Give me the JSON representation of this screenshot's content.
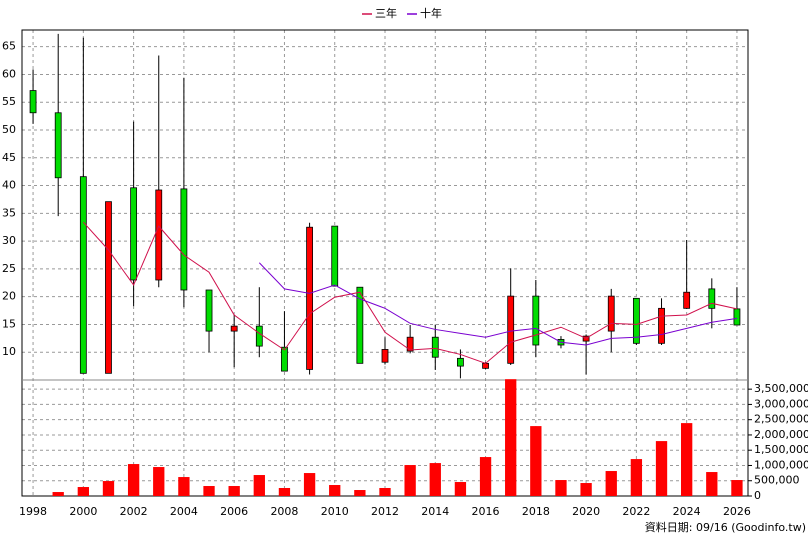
{
  "chart_data": {
    "type": "candlestick",
    "x": [
      1998,
      1999,
      2000,
      2001,
      2002,
      2003,
      2004,
      2005,
      2006,
      2007,
      2008,
      2009,
      2010,
      2011,
      2012,
      2013,
      2014,
      2015,
      2016,
      2017,
      2018,
      2019,
      2020,
      2021,
      2022,
      2023,
      2024,
      2025,
      2026
    ],
    "open": [
      57.1,
      53.1,
      41.6,
      6.2,
      39.6,
      23.0,
      39.4,
      21.2,
      13.8,
      14.7,
      10.9,
      6.9,
      32.7,
      21.7,
      8.2,
      10.2,
      12.7,
      8.9,
      7.1,
      8.0,
      20.1,
      12.3,
      12.0,
      13.8,
      19.7,
      11.6,
      17.9,
      21.4,
      17.8
    ],
    "high": [
      60.9,
      67.3,
      66.6,
      37.1,
      51.5,
      63.4,
      59.4,
      21.2,
      16.7,
      21.7,
      17.4,
      33.3,
      32.7,
      21.7,
      12.7,
      14.9,
      14.9,
      10.5,
      8.2,
      25.1,
      23.0,
      12.9,
      13.2,
      21.4,
      19.7,
      19.7,
      30.2,
      23.3,
      21.7
    ],
    "low": [
      51.1,
      34.5,
      6.2,
      6.2,
      18.3,
      21.7,
      18.1,
      10.0,
      7.3,
      9.1,
      6.6,
      6.0,
      21.9,
      8.0,
      7.8,
      9.8,
      6.8,
      5.3,
      6.9,
      7.7,
      9.1,
      10.7,
      6.0,
      10.0,
      11.3,
      11.3,
      17.8,
      14.3,
      14.9
    ],
    "close": [
      53.1,
      41.4,
      6.2,
      37.1,
      23.0,
      39.2,
      21.2,
      13.8,
      14.7,
      11.1,
      6.6,
      32.5,
      21.9,
      8.0,
      10.5,
      12.7,
      9.1,
      7.5,
      8.0,
      20.1,
      11.3,
      11.3,
      12.9,
      20.1,
      11.6,
      17.9,
      20.8,
      17.9,
      14.9
    ],
    "up_color": "#ff0000",
    "down_color": "#00dd00",
    "series": [
      {
        "name": "三年",
        "color": "#d0104c",
        "values": [
          null,
          null,
          33.4,
          28.4,
          22.1,
          32.7,
          27.5,
          24.4,
          16.7,
          13.4,
          10.4,
          16.9,
          19.9,
          20.8,
          13.6,
          10.4,
          10.7,
          9.6,
          8.0,
          11.8,
          13.1,
          14.5,
          12.5,
          15.2,
          15.0,
          16.5,
          16.7,
          18.8,
          17.8
        ]
      },
      {
        "name": "十年",
        "color": "#7a00d0",
        "values": [
          null,
          null,
          null,
          null,
          null,
          null,
          null,
          null,
          null,
          26.1,
          21.4,
          20.6,
          22.1,
          19.6,
          17.9,
          15.2,
          14.1,
          13.4,
          12.7,
          13.8,
          14.3,
          11.8,
          11.3,
          12.5,
          12.7,
          13.2,
          14.3,
          15.4,
          16.1
        ]
      }
    ],
    "xlim": [
      1997.56,
      2026.44
    ],
    "xticks": [
      1998,
      2000,
      2002,
      2004,
      2006,
      2008,
      2010,
      2012,
      2014,
      2016,
      2018,
      2020,
      2022,
      2024,
      2026
    ],
    "ylim": [
      5,
      68
    ],
    "yticks": [
      10,
      15,
      20,
      25,
      30,
      35,
      40,
      45,
      50,
      55,
      60,
      65
    ],
    "grid": true,
    "volume": {
      "color": "#ff0000",
      "values": [
        0,
        130000,
        294000,
        490000,
        1047000,
        949000,
        621000,
        327000,
        327000,
        687000,
        262000,
        752000,
        360000,
        196000,
        262000,
        1014000,
        1079000,
        458000,
        1276000,
        3827000,
        2290000,
        523000,
        425000,
        818000,
        1210000,
        1799000,
        2388000,
        785000,
        523000
      ],
      "ylim": [
        0,
        3800000
      ],
      "yticks": [
        0,
        {
          "value": 500000,
          "label": "500,000"
        },
        {
          "value": 1000000,
          "label": "1,000,000"
        },
        {
          "value": 1500000,
          "label": "1,500,000"
        },
        {
          "value": 2000000,
          "label": "2,000,000"
        },
        {
          "value": 2500000,
          "label": "2,500,000"
        },
        {
          "value": 3000000,
          "label": "3,000,000"
        },
        {
          "value": 3500000,
          "label": "3,500,000"
        }
      ]
    },
    "footer": "資料日期: 09/16  (Goodinfo.tw)"
  }
}
